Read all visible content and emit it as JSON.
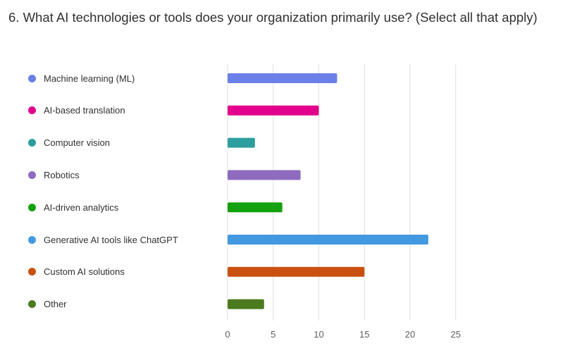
{
  "question": {
    "title": "6. What AI technologies or tools does your organization primarily use? (Select all that apply)"
  },
  "chart_data": {
    "type": "bar",
    "orientation": "horizontal",
    "categories": [
      "Machine learning (ML)",
      "AI-based translation",
      "Computer vision",
      "Robotics",
      "AI-driven analytics",
      "Generative AI tools like ChatGPT",
      "Custom AI solutions",
      "Other"
    ],
    "values": [
      12,
      10,
      3,
      8,
      6,
      22,
      15,
      4
    ],
    "colors": [
      "#6b7fe8",
      "#e3008c",
      "#2d9e9e",
      "#8e6bbf",
      "#13a10e",
      "#4299e1",
      "#ca5010",
      "#4c7a1f"
    ],
    "xticks": [
      0,
      5,
      10,
      15,
      20,
      25
    ],
    "xlim": [
      0,
      25
    ],
    "grid": true,
    "legend_position": "left"
  }
}
